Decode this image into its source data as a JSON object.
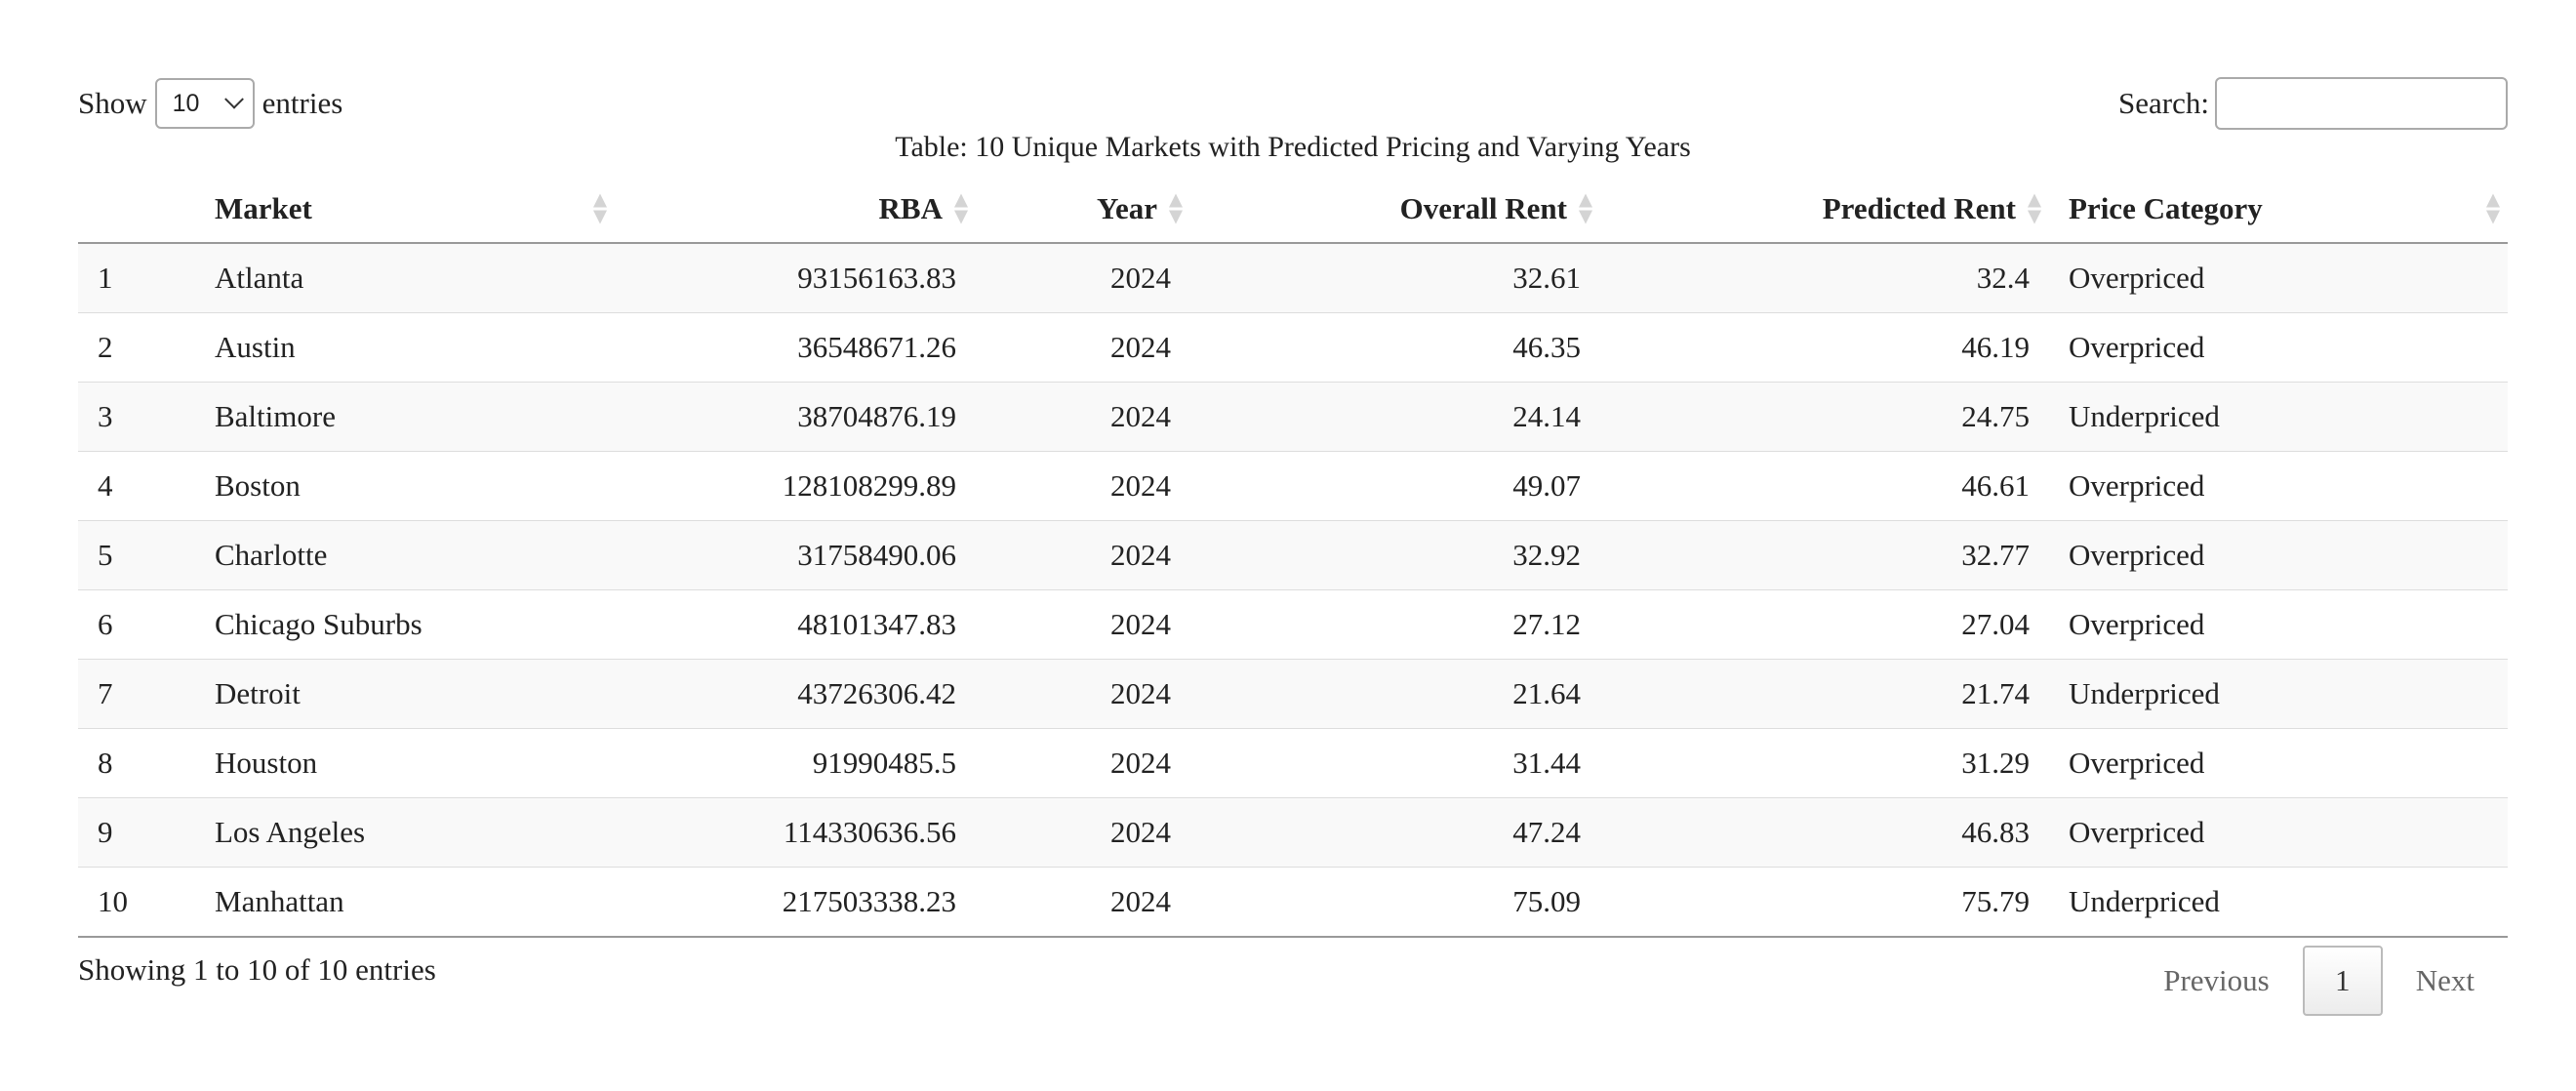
{
  "length_control": {
    "prefix": "Show",
    "selected": "10",
    "suffix": "entries"
  },
  "search": {
    "label": "Search:",
    "value": ""
  },
  "table": {
    "caption": "Table: 10 Unique Markets with Predicted Pricing and Varying Years",
    "columns": [
      "",
      "Market",
      "RBA",
      "Year",
      "Overall Rent",
      "Predicted Rent",
      "Price Category"
    ],
    "rows": [
      [
        "1",
        "Atlanta",
        "93156163.83",
        "2024",
        "32.61",
        "32.4",
        "Overpriced"
      ],
      [
        "2",
        "Austin",
        "36548671.26",
        "2024",
        "46.35",
        "46.19",
        "Overpriced"
      ],
      [
        "3",
        "Baltimore",
        "38704876.19",
        "2024",
        "24.14",
        "24.75",
        "Underpriced"
      ],
      [
        "4",
        "Boston",
        "128108299.89",
        "2024",
        "49.07",
        "46.61",
        "Overpriced"
      ],
      [
        "5",
        "Charlotte",
        "31758490.06",
        "2024",
        "32.92",
        "32.77",
        "Overpriced"
      ],
      [
        "6",
        "Chicago Suburbs",
        "48101347.83",
        "2024",
        "27.12",
        "27.04",
        "Overpriced"
      ],
      [
        "7",
        "Detroit",
        "43726306.42",
        "2024",
        "21.64",
        "21.74",
        "Underpriced"
      ],
      [
        "8",
        "Houston",
        "91990485.5",
        "2024",
        "31.44",
        "31.29",
        "Overpriced"
      ],
      [
        "9",
        "Los Angeles",
        "114330636.56",
        "2024",
        "47.24",
        "46.83",
        "Overpriced"
      ],
      [
        "10",
        "Manhattan",
        "217503338.23",
        "2024",
        "75.09",
        "75.79",
        "Underpriced"
      ]
    ]
  },
  "info": "Showing 1 to 10 of 10 entries",
  "pagination": {
    "previous": "Previous",
    "current": "1",
    "next": "Next"
  }
}
